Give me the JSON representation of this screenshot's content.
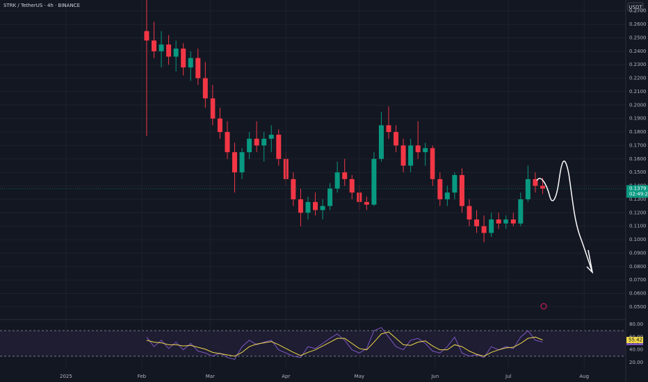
{
  "chart_data": [
    {
      "type": "candlestick",
      "title": "STRK / TetherUS · 4h · BINANCE",
      "currency": "USDT",
      "countdown": "02:49:20",
      "up_color": "#089981",
      "down_color": "#f23645",
      "grid": true,
      "xlim": [
        -27,
        229
      ],
      "ylim": [
        0.0417,
        0.2781
      ],
      "yticks": [
        {
          "value": 0.05,
          "label": "0.0500"
        },
        {
          "value": 0.06,
          "label": "0.0600"
        },
        {
          "value": 0.07,
          "label": "0.0700"
        },
        {
          "value": 0.08,
          "label": "0.0800"
        },
        {
          "value": 0.09,
          "label": "0.0900"
        },
        {
          "value": 0.1,
          "label": "0.1000"
        },
        {
          "value": 0.11,
          "label": "0.1100"
        },
        {
          "value": 0.12,
          "label": "0.1200"
        },
        {
          "value": 0.13,
          "label": "0.1300"
        },
        {
          "value": 0.14,
          "label": "0.1400"
        },
        {
          "value": 0.15,
          "label": "0.1500"
        },
        {
          "value": 0.16,
          "label": "0.1600"
        },
        {
          "value": 0.17,
          "label": "0.1700"
        },
        {
          "value": 0.18,
          "label": "0.1800"
        },
        {
          "value": 0.19,
          "label": "0.1900"
        },
        {
          "value": 0.2,
          "label": "0.2000"
        },
        {
          "value": 0.21,
          "label": "0.2100"
        },
        {
          "value": 0.22,
          "label": "0.2200"
        },
        {
          "value": 0.23,
          "label": "0.2300"
        },
        {
          "value": 0.24,
          "label": "0.2400"
        },
        {
          "value": 0.25,
          "label": "0.2500"
        },
        {
          "value": 0.26,
          "label": "0.2600"
        },
        {
          "value": 0.27,
          "label": "0.2700"
        }
      ],
      "x": [
        33,
        36,
        39,
        42,
        45,
        48,
        51,
        54,
        57,
        60,
        63,
        66,
        69,
        72,
        75,
        78,
        81,
        84,
        87,
        90,
        93,
        96,
        99,
        102,
        105,
        108,
        111,
        114,
        117,
        120,
        123,
        126,
        129,
        132,
        135,
        138,
        141,
        144,
        147,
        150,
        153,
        156,
        159,
        162,
        165,
        168,
        171,
        174,
        177,
        180,
        183,
        186,
        189,
        192,
        195
      ],
      "open": [
        0.255,
        0.248,
        0.24,
        0.245,
        0.236,
        0.242,
        0.228,
        0.235,
        0.22,
        0.205,
        0.19,
        0.18,
        0.165,
        0.15,
        0.165,
        0.175,
        0.17,
        0.175,
        0.178,
        0.16,
        0.145,
        0.13,
        0.12,
        0.128,
        0.122,
        0.125,
        0.138,
        0.15,
        0.145,
        0.135,
        0.128,
        0.126,
        0.16,
        0.185,
        0.18,
        0.17,
        0.155,
        0.17,
        0.165,
        0.168,
        0.145,
        0.13,
        0.135,
        0.148,
        0.125,
        0.115,
        0.11,
        0.105,
        0.115,
        0.112,
        0.115,
        0.112,
        0.13,
        0.145,
        0.14
      ],
      "high": [
        0.278,
        0.262,
        0.255,
        0.252,
        0.248,
        0.246,
        0.24,
        0.242,
        0.232,
        0.215,
        0.198,
        0.188,
        0.172,
        0.168,
        0.18,
        0.188,
        0.18,
        0.185,
        0.182,
        0.165,
        0.15,
        0.138,
        0.132,
        0.135,
        0.13,
        0.142,
        0.158,
        0.16,
        0.148,
        0.14,
        0.132,
        0.165,
        0.195,
        0.199,
        0.185,
        0.175,
        0.175,
        0.188,
        0.172,
        0.17,
        0.15,
        0.14,
        0.15,
        0.153,
        0.13,
        0.122,
        0.118,
        0.12,
        0.12,
        0.118,
        0.12,
        0.135,
        0.155,
        0.15,
        0.146
      ],
      "low": [
        0.177,
        0.235,
        0.228,
        0.23,
        0.225,
        0.222,
        0.218,
        0.215,
        0.198,
        0.185,
        0.175,
        0.16,
        0.135,
        0.145,
        0.16,
        0.165,
        0.158,
        0.165,
        0.155,
        0.14,
        0.125,
        0.11,
        0.115,
        0.118,
        0.115,
        0.122,
        0.135,
        0.14,
        0.13,
        0.122,
        0.122,
        0.125,
        0.158,
        0.175,
        0.165,
        0.15,
        0.15,
        0.16,
        0.155,
        0.14,
        0.125,
        0.125,
        0.13,
        0.12,
        0.11,
        0.105,
        0.098,
        0.102,
        0.108,
        0.108,
        0.11,
        0.11,
        0.128,
        0.135,
        0.134
      ],
      "close": [
        0.248,
        0.24,
        0.245,
        0.236,
        0.242,
        0.228,
        0.235,
        0.22,
        0.205,
        0.19,
        0.18,
        0.165,
        0.15,
        0.165,
        0.175,
        0.17,
        0.175,
        0.178,
        0.16,
        0.145,
        0.13,
        0.12,
        0.128,
        0.122,
        0.125,
        0.138,
        0.15,
        0.145,
        0.135,
        0.128,
        0.126,
        0.16,
        0.185,
        0.18,
        0.17,
        0.155,
        0.17,
        0.165,
        0.168,
        0.145,
        0.13,
        0.135,
        0.148,
        0.125,
        0.115,
        0.11,
        0.105,
        0.115,
        0.112,
        0.115,
        0.112,
        0.13,
        0.145,
        0.14,
        0.1379
      ]
    },
    {
      "type": "line",
      "xlim": [
        -27,
        229
      ],
      "ylim": [
        11.3,
        87.6
      ],
      "band": [
        30,
        70
      ],
      "yticks": [
        {
          "value": 20,
          "label": "20.00"
        },
        {
          "value": 40,
          "label": "40.00"
        },
        {
          "value": 60,
          "label": "60.00"
        },
        {
          "value": 80,
          "label": "80.00"
        }
      ],
      "xticks": [
        {
          "value": 0,
          "label": "2025"
        },
        {
          "value": 31,
          "label": "Feb"
        },
        {
          "value": 59,
          "label": "Mar"
        },
        {
          "value": 90,
          "label": "Apr"
        },
        {
          "value": 120,
          "label": "May"
        },
        {
          "value": 151,
          "label": "Jun"
        },
        {
          "value": 181,
          "label": "Jul"
        },
        {
          "value": 212,
          "label": "Aug"
        }
      ],
      "x": [
        33,
        36,
        39,
        42,
        45,
        48,
        51,
        54,
        57,
        60,
        63,
        66,
        69,
        72,
        75,
        78,
        81,
        84,
        87,
        90,
        93,
        96,
        99,
        102,
        105,
        108,
        111,
        114,
        117,
        120,
        123,
        126,
        129,
        132,
        135,
        138,
        141,
        144,
        147,
        150,
        153,
        156,
        159,
        162,
        165,
        168,
        171,
        174,
        177,
        180,
        183,
        186,
        189,
        192,
        195
      ],
      "series": [
        {
          "color": "#7e57c2",
          "values": [
            60,
            45,
            55,
            42,
            52,
            40,
            50,
            38,
            35,
            30,
            35,
            28,
            25,
            45,
            55,
            48,
            52,
            55,
            40,
            35,
            30,
            28,
            45,
            42,
            50,
            58,
            65,
            55,
            40,
            35,
            42,
            70,
            75,
            60,
            45,
            40,
            55,
            58,
            50,
            38,
            35,
            45,
            60,
            35,
            30,
            32,
            28,
            45,
            40,
            45,
            42,
            60,
            70,
            55,
            52.24
          ]
        },
        {
          "color": "#f0d84a",
          "values": [
            55,
            52,
            51,
            48,
            48,
            46,
            47,
            44,
            41,
            36,
            34,
            32,
            30,
            36,
            45,
            49,
            51,
            53,
            48,
            42,
            36,
            31,
            36,
            40,
            46,
            52,
            58,
            58,
            50,
            42,
            40,
            52,
            65,
            68,
            58,
            48,
            47,
            52,
            54,
            46,
            40,
            40,
            48,
            45,
            38,
            33,
            30,
            36,
            40,
            43,
            44,
            50,
            58,
            60,
            55.42
          ]
        }
      ]
    }
  ]
}
